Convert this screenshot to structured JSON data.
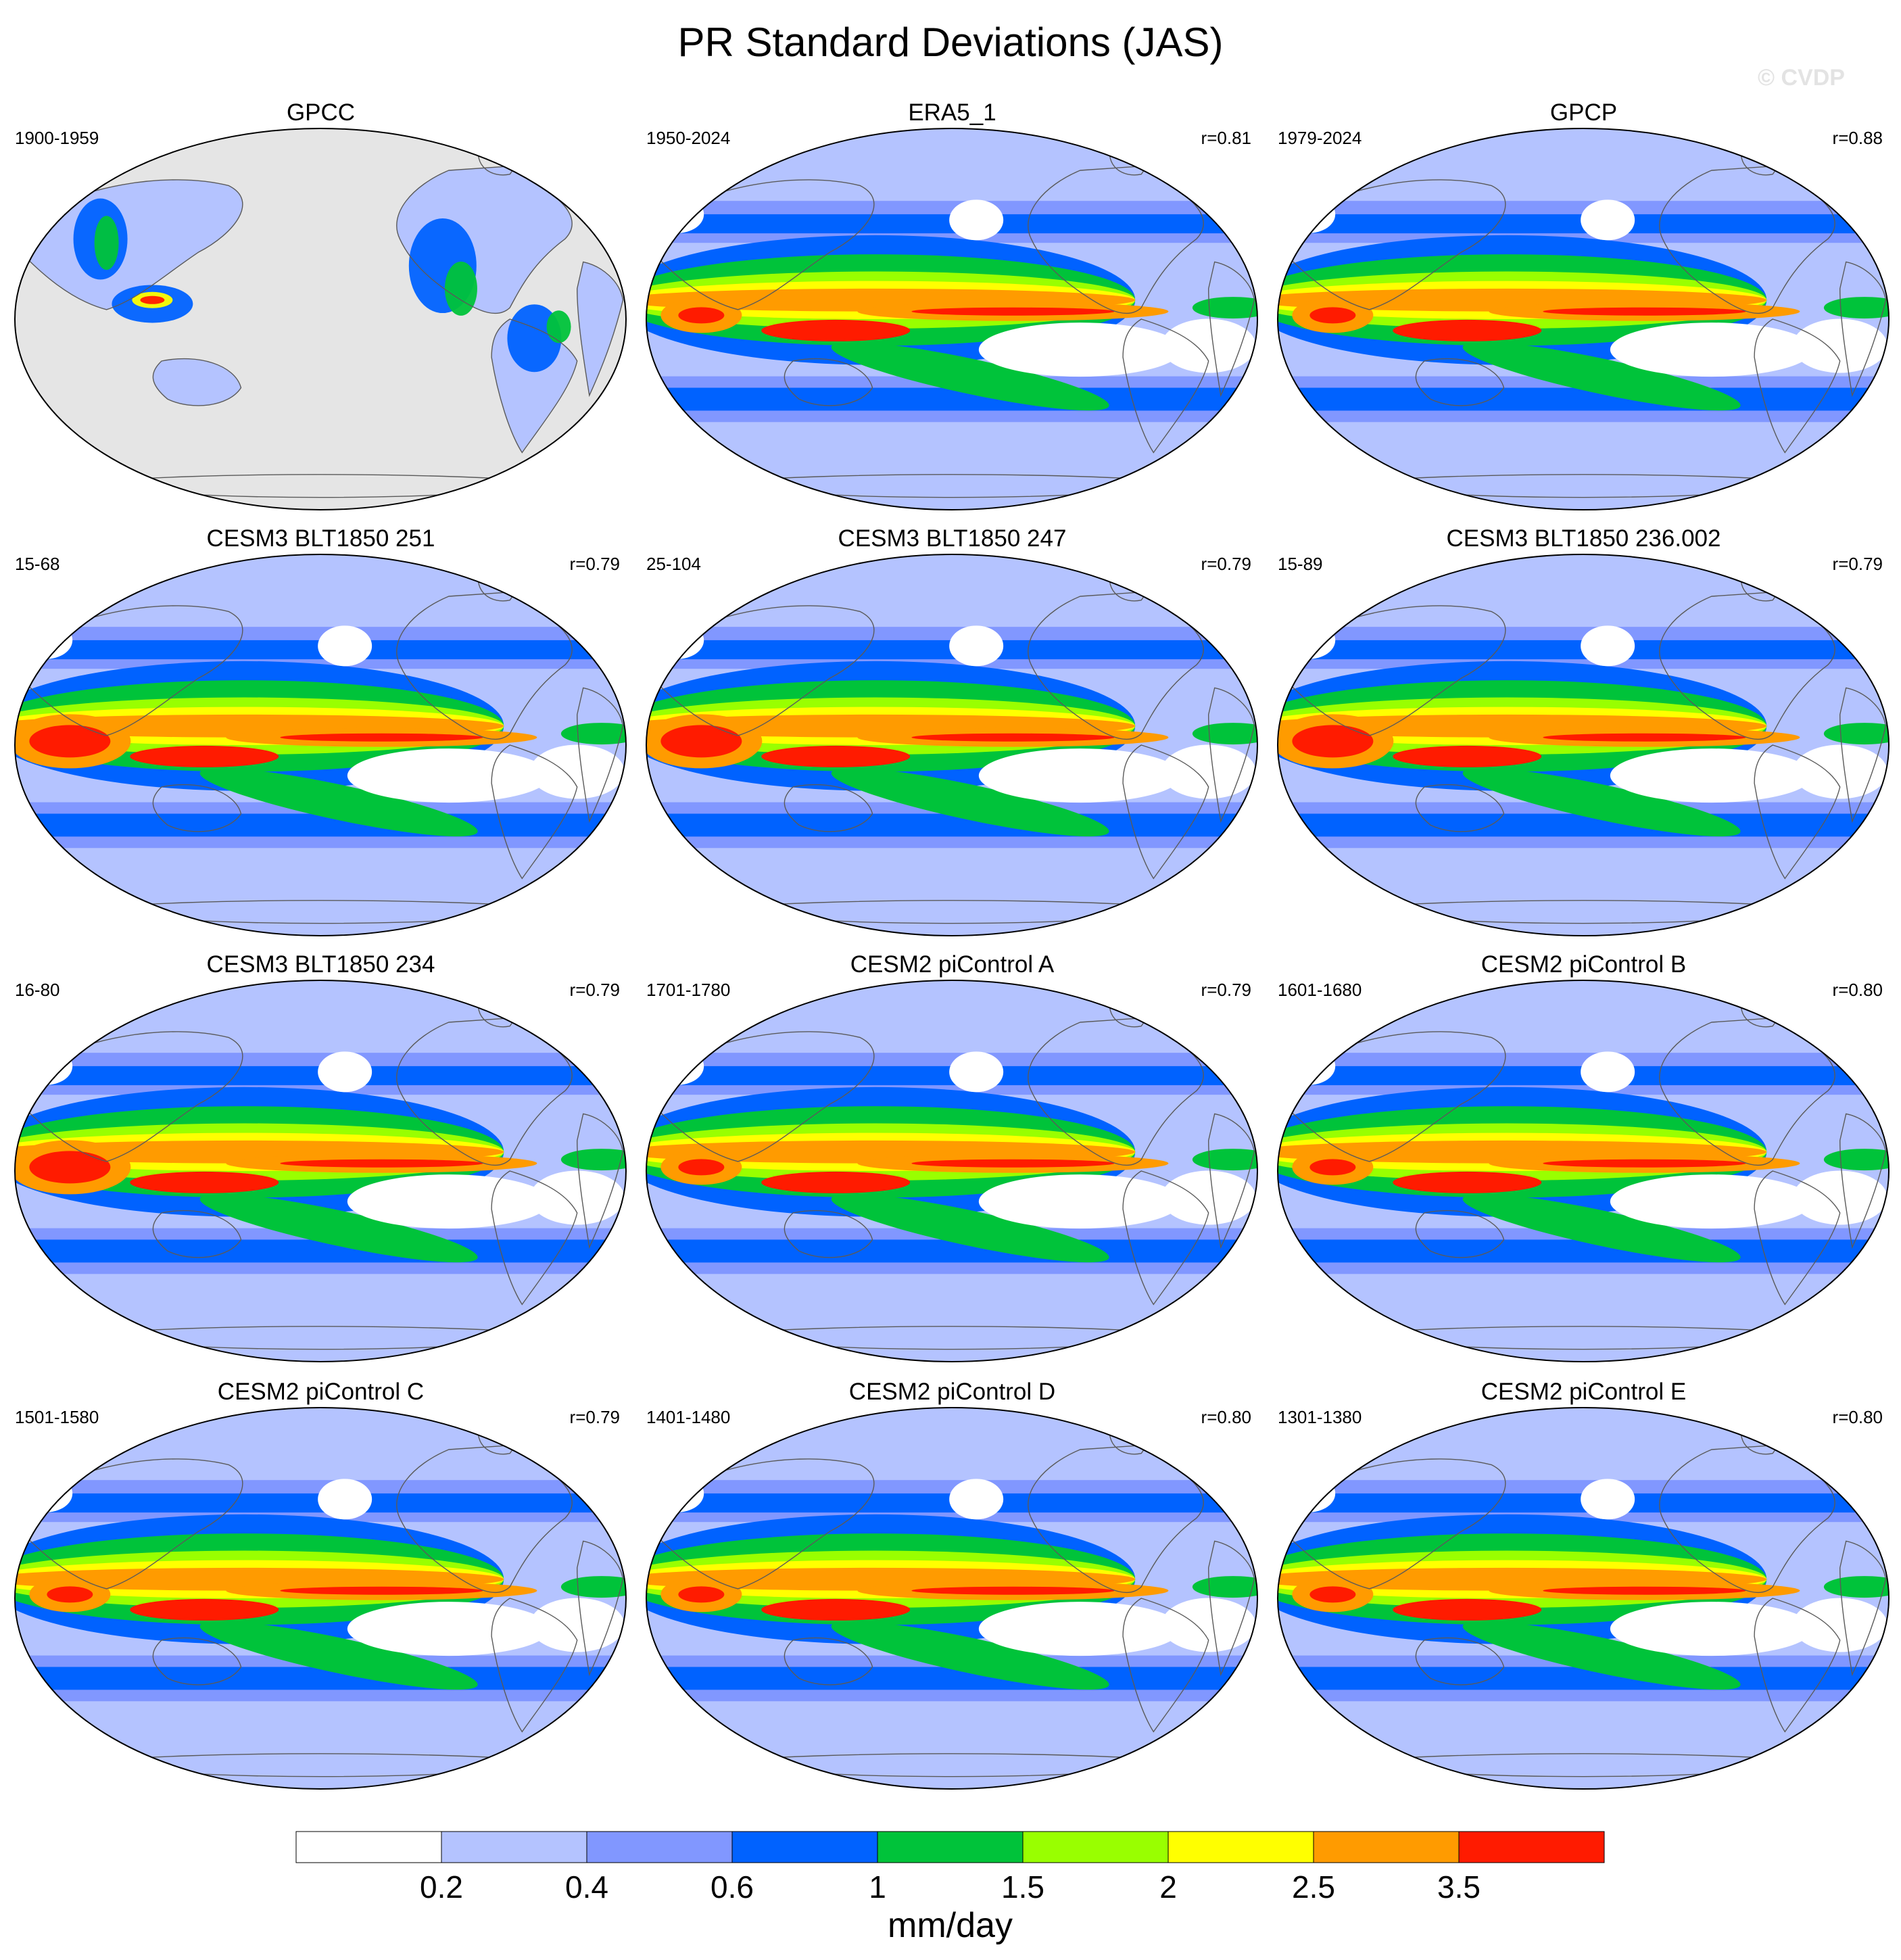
{
  "title": "PR Standard Deviations (JAS)",
  "watermark": "© CVDP",
  "colors": {
    "fill_values": [
      "#ffffff",
      "#b4c3ff",
      "#8197ff",
      "#0062ff",
      "#00c33a",
      "#99ff00",
      "#ffff00",
      "#ff9b00",
      "#ff1b00",
      "#c80000"
    ],
    "missing": "#e5e5e5",
    "outline": "#5a5a5a"
  },
  "panels": [
    {
      "title": "GPCC",
      "period": "1900-1959",
      "r": "",
      "masked_ocean": true,
      "variant": 0
    },
    {
      "title": "ERA5_1",
      "period": "1950-2024",
      "r": "r=0.81",
      "variant": 1
    },
    {
      "title": "GPCP",
      "period": "1979-2024",
      "r": "r=0.88",
      "variant": 2
    },
    {
      "title": "CESM3 BLT1850 251",
      "period": "15-68",
      "r": "r=0.79",
      "variant": 3
    },
    {
      "title": "CESM3 BLT1850 247",
      "period": "25-104",
      "r": "r=0.79",
      "variant": 4
    },
    {
      "title": "CESM3 BLT1850 236.002",
      "period": "15-89",
      "r": "r=0.79",
      "variant": 5
    },
    {
      "title": "CESM3 BLT1850 234",
      "period": "16-80",
      "r": "r=0.79",
      "variant": 6
    },
    {
      "title": "CESM2 piControl A",
      "period": "1701-1780",
      "r": "r=0.79",
      "variant": 7
    },
    {
      "title": "CESM2 piControl B",
      "period": "1601-1680",
      "r": "r=0.80",
      "variant": 8
    },
    {
      "title": "CESM2 piControl C",
      "period": "1501-1580",
      "r": "r=0.79",
      "variant": 9
    },
    {
      "title": "CESM2 piControl D",
      "period": "1401-1480",
      "r": "r=0.80",
      "variant": 10
    },
    {
      "title": "CESM2 piControl E",
      "period": "1301-1380",
      "r": "r=0.80",
      "variant": 11
    }
  ],
  "colorbar": {
    "levels": [
      "0.2",
      "0.4",
      "0.6",
      "1",
      "1.5",
      "2",
      "2.5",
      "3.5"
    ],
    "colors": [
      "#ffffff",
      "#b4c3ff",
      "#8197ff",
      "#0062ff",
      "#00c33a",
      "#99ff00",
      "#ffff00",
      "#ff9b00",
      "#ff1b00"
    ],
    "units": "mm/day"
  }
}
